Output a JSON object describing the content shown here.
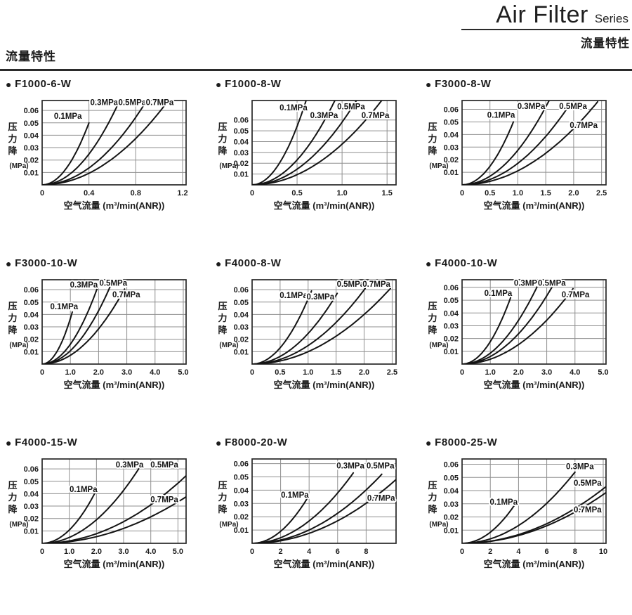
{
  "page": {
    "title_en": "Air Filter",
    "title_suffix": "Series",
    "subtitle_cn": "流量特性",
    "section_heading": "流量特性"
  },
  "glyphs": {
    "bullet": "●"
  },
  "colors": {
    "curve": "#141414",
    "grid": "#8f8f8f",
    "frame": "#262626",
    "text": "#1c1c1c"
  },
  "axes": {
    "ylabel_chars": [
      "压",
      "力",
      "降"
    ],
    "ylabel_unit": "(MPa)",
    "curve_model": "pressure_drop = end[1] * (flow/end[0])^exp, from origin to end point"
  },
  "chart_data": [
    {
      "type": "line",
      "title": "F1000-6-W",
      "xlabel": "空气流量 (m³/min(ANR))",
      "ylabel": "压力降 (MPa)",
      "xlim": [
        0,
        1.23
      ],
      "ylim": [
        0,
        0.068
      ],
      "xticks": [
        0,
        0.4,
        0.8,
        1.2
      ],
      "xtick_labels": [
        "0",
        "0.4",
        "0.8",
        "1.2"
      ],
      "yticks": [
        0.01,
        0.02,
        0.03,
        0.04,
        0.05,
        0.06
      ],
      "series": [
        {
          "name": "0.1MPa",
          "exp": 2,
          "end": [
            0.4,
            0.05
          ],
          "label_at": [
            0.22,
            0.0555
          ]
        },
        {
          "name": "0.3MPa",
          "exp": 2,
          "end": [
            0.645,
            0.0645
          ],
          "label_at": [
            0.53,
            0.0665
          ]
        },
        {
          "name": "0.5MPa",
          "exp": 2,
          "end": [
            0.87,
            0.0645
          ],
          "label_at": [
            0.77,
            0.0665
          ]
        },
        {
          "name": "0.7MPa",
          "exp": 2,
          "end": [
            1.05,
            0.0645
          ],
          "label_at": [
            1.005,
            0.0665
          ]
        }
      ]
    },
    {
      "type": "line",
      "title": "F1000-8-W",
      "xlabel": "空气流量 (m³/min(ANR))",
      "ylabel": "压力降 (MPa)",
      "xlim": [
        0,
        1.6
      ],
      "ylim": [
        0,
        0.078
      ],
      "xticks": [
        0,
        0.5,
        1.0,
        1.5
      ],
      "xtick_labels": [
        "0",
        "0.5",
        "1.0",
        "1.5"
      ],
      "yticks": [
        0.01,
        0.02,
        0.03,
        0.04,
        0.05,
        0.06
      ],
      "series": [
        {
          "name": "0.1MPa",
          "exp": 2,
          "end": [
            0.6,
            0.078
          ],
          "label_at": [
            0.46,
            0.0715
          ]
        },
        {
          "name": "0.3MPa",
          "exp": 2,
          "end": [
            0.92,
            0.078
          ],
          "label_at": [
            0.8,
            0.0645
          ]
        },
        {
          "name": "0.5MPa",
          "exp": 2,
          "end": [
            1.16,
            0.078
          ],
          "label_at": [
            1.1,
            0.0725
          ]
        },
        {
          "name": "0.7MPa",
          "exp": 2,
          "end": [
            1.44,
            0.078
          ],
          "label_at": [
            1.37,
            0.0645
          ]
        }
      ]
    },
    {
      "type": "line",
      "title": "F3000-8-W",
      "xlabel": "空气流量 (m³/min(ANR))",
      "ylabel": "压力降 (MPa)",
      "xlim": [
        0,
        2.58
      ],
      "ylim": [
        0,
        0.067
      ],
      "xticks": [
        0,
        0.5,
        1.0,
        1.5,
        2.0,
        2.5
      ],
      "xtick_labels": [
        "0",
        "0.5",
        "1.0",
        "1.5",
        "2.0",
        "2.5"
      ],
      "yticks": [
        0.01,
        0.02,
        0.03,
        0.04,
        0.05,
        0.06
      ],
      "series": [
        {
          "name": "0.1MPa",
          "exp": 2,
          "end": [
            0.92,
            0.05
          ],
          "label_at": [
            0.7,
            0.0555
          ]
        },
        {
          "name": "0.3MPa",
          "exp": 2,
          "end": [
            1.56,
            0.067
          ],
          "label_at": [
            1.24,
            0.0625
          ]
        },
        {
          "name": "0.5MPa",
          "exp": 2,
          "end": [
            1.88,
            0.0605
          ],
          "label_at": [
            1.99,
            0.0625
          ]
        },
        {
          "name": "0.7MPa",
          "exp": 2,
          "end": [
            2.43,
            0.066
          ],
          "label_at": [
            2.18,
            0.0475
          ]
        }
      ]
    },
    {
      "type": "line",
      "title": "F3000-10-W",
      "xlabel": "空气流量 (m³/min(ANR))",
      "ylabel": "压力降 (MPa)",
      "xlim": [
        0,
        5.1
      ],
      "ylim": [
        0,
        0.068
      ],
      "xticks": [
        0,
        1,
        2,
        3,
        4,
        5
      ],
      "xtick_labels": [
        "0",
        "1.0",
        "2.0",
        "3.0",
        "4.0",
        "5.0"
      ],
      "yticks": [
        0.01,
        0.02,
        0.03,
        0.04,
        0.05,
        0.06
      ],
      "series": [
        {
          "name": "0.1MPa",
          "exp": 2,
          "end": [
            1.07,
            0.042
          ],
          "label_at": [
            0.78,
            0.0465
          ]
        },
        {
          "name": "0.3MPa",
          "exp": 2,
          "end": [
            2.06,
            0.068
          ],
          "label_at": [
            1.48,
            0.064
          ]
        },
        {
          "name": "0.5MPa",
          "exp": 2,
          "end": [
            2.42,
            0.063
          ],
          "label_at": [
            2.52,
            0.0655
          ]
        },
        {
          "name": "0.7MPa",
          "exp": 2,
          "end": [
            2.92,
            0.0605
          ],
          "label_at": [
            2.98,
            0.056
          ]
        }
      ]
    },
    {
      "type": "line",
      "title": "F4000-8-W",
      "xlabel": "空气流量 (m³/min(ANR))",
      "ylabel": "压力降 (MPa)",
      "xlim": [
        0,
        2.57
      ],
      "ylim": [
        0,
        0.068
      ],
      "xticks": [
        0,
        0.5,
        1.0,
        1.5,
        2.0,
        2.5
      ],
      "xtick_labels": [
        "0",
        "0.5",
        "1.0",
        "1.5",
        "2.0",
        "2.5"
      ],
      "yticks": [
        0.01,
        0.02,
        0.03,
        0.04,
        0.05,
        0.06
      ],
      "series": [
        {
          "name": "0.1MPa",
          "exp": 2,
          "end": [
            1.06,
            0.059
          ],
          "label_at": [
            0.74,
            0.0555
          ]
        },
        {
          "name": "0.3MPa",
          "exp": 2,
          "end": [
            1.52,
            0.057
          ],
          "label_at": [
            1.22,
            0.0545
          ]
        },
        {
          "name": "0.5MPa",
          "exp": 2,
          "end": [
            2.02,
            0.061
          ],
          "label_at": [
            1.76,
            0.0645
          ]
        },
        {
          "name": "0.7MPa",
          "exp": 2,
          "end": [
            2.47,
            0.061
          ],
          "label_at": [
            2.22,
            0.0645
          ]
        }
      ]
    },
    {
      "type": "line",
      "title": "F4000-10-W",
      "xlabel": "空气流量 (m³/min(ANR))",
      "ylabel": "压力降 (MPa)",
      "xlim": [
        0,
        5.1
      ],
      "ylim": [
        0,
        0.066
      ],
      "xticks": [
        0,
        1,
        2,
        3,
        4,
        5
      ],
      "xtick_labels": [
        "0",
        "1.0",
        "2.0",
        "3.0",
        "4.0",
        "5.0"
      ],
      "yticks": [
        0.01,
        0.02,
        0.03,
        0.04,
        0.05,
        0.06
      ],
      "series": [
        {
          "name": "0.1MPa",
          "exp": 2,
          "end": [
            1.72,
            0.052
          ],
          "label_at": [
            1.28,
            0.0555
          ]
        },
        {
          "name": "0.3MPa",
          "exp": 2,
          "end": [
            2.68,
            0.0615
          ],
          "label_at": [
            2.33,
            0.0635
          ]
        },
        {
          "name": "0.5MPa",
          "exp": 2,
          "end": [
            3.22,
            0.0615
          ],
          "label_at": [
            3.18,
            0.0635
          ]
        },
        {
          "name": "0.7MPa",
          "exp": 2,
          "end": [
            3.93,
            0.059
          ],
          "label_at": [
            4.02,
            0.0545
          ]
        }
      ]
    },
    {
      "type": "line",
      "title": "F4000-15-W",
      "xlabel": "空气流量 (m³/min(ANR))",
      "ylabel": "压力降 (MPa)",
      "xlim": [
        0,
        5.3
      ],
      "ylim": [
        0,
        0.068
      ],
      "xticks": [
        0,
        1,
        2,
        3,
        4,
        5
      ],
      "xtick_labels": [
        "0",
        "1.0",
        "2.0",
        "3.0",
        "4.0",
        "5.0"
      ],
      "yticks": [
        0.01,
        0.02,
        0.03,
        0.04,
        0.05,
        0.06
      ],
      "series": [
        {
          "name": "0.1MPa",
          "exp": 2,
          "end": [
            1.93,
            0.04
          ],
          "label_at": [
            1.52,
            0.0435
          ]
        },
        {
          "name": "0.3MPa",
          "exp": 2,
          "end": [
            3.6,
            0.0615
          ],
          "label_at": [
            3.22,
            0.0635
          ]
        },
        {
          "name": "0.5MPa",
          "exp": 2,
          "end": [
            5.3,
            0.0545
          ],
          "label_at": [
            4.5,
            0.0635
          ]
        },
        {
          "name": "0.7MPa",
          "exp": 2,
          "end": [
            5.3,
            0.0375
          ],
          "label_at": [
            4.5,
            0.0355
          ]
        }
      ]
    },
    {
      "type": "line",
      "title": "F8000-20-W",
      "xlabel": "空气流量 (m³/min(ANR))",
      "ylabel": "压力降 (MPa)",
      "xlim": [
        0,
        10.1
      ],
      "ylim": [
        0,
        0.0635
      ],
      "xticks": [
        0,
        2,
        4,
        6,
        8
      ],
      "xtick_labels": [
        "0",
        "2",
        "4",
        "6",
        "8"
      ],
      "yticks": [
        0.01,
        0.02,
        0.03,
        0.04,
        0.05,
        0.06
      ],
      "series": [
        {
          "name": "0.1MPa",
          "exp": 2,
          "end": [
            3.85,
            0.0335
          ],
          "label_at": [
            3.0,
            0.0365
          ]
        },
        {
          "name": "0.3MPa",
          "exp": 2,
          "end": [
            7.1,
            0.053
          ],
          "label_at": [
            6.9,
            0.0585
          ]
        },
        {
          "name": "0.5MPa",
          "exp": 2,
          "end": [
            9.1,
            0.052
          ],
          "label_at": [
            9.0,
            0.0585
          ]
        },
        {
          "name": "0.7MPa",
          "exp": 2,
          "end": [
            10.1,
            0.048
          ],
          "label_at": [
            9.05,
            0.034
          ]
        }
      ]
    },
    {
      "type": "line",
      "title": "F8000-25-W",
      "xlabel": "空气流量 (m³/min(ANR))",
      "ylabel": "压力降 (MPa)",
      "xlim": [
        0,
        10.2
      ],
      "ylim": [
        0,
        0.064
      ],
      "xticks": [
        0,
        2,
        4,
        6,
        8,
        10
      ],
      "xtick_labels": [
        "0",
        "2",
        "4",
        "6",
        "8",
        "10"
      ],
      "yticks": [
        0.01,
        0.02,
        0.03,
        0.04,
        0.05,
        0.06
      ],
      "series": [
        {
          "name": "0.1MPa",
          "exp": 2,
          "end": [
            3.75,
            0.0295
          ],
          "label_at": [
            2.95,
            0.0315
          ]
        },
        {
          "name": "0.3MPa",
          "exp": 2,
          "end": [
            8.0,
            0.054
          ],
          "label_at": [
            8.35,
            0.0585
          ]
        },
        {
          "name": "0.5MPa",
          "exp": 2,
          "end": [
            10.2,
            0.043
          ],
          "label_at": [
            8.9,
            0.046
          ]
        },
        {
          "name": "0.7MPa",
          "exp": 2,
          "end": [
            10.2,
            0.0385
          ],
          "label_at": [
            8.9,
            0.0255
          ]
        }
      ]
    }
  ]
}
